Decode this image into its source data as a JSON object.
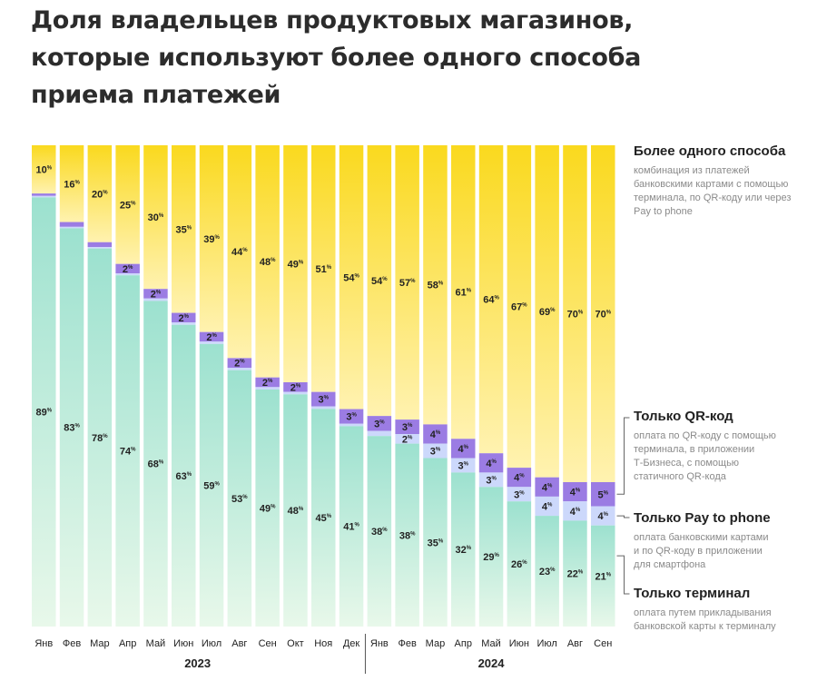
{
  "title_lines": [
    "Доля владельцев продуктовых магазинов,",
    "которые используют более одного способа",
    "приема платежей"
  ],
  "legend": [
    {
      "key": "multi",
      "title": "Более одного способа",
      "desc": [
        "комбинация из платежей",
        "банковскими картами с помощью",
        "терминала, по QR-коду или через",
        "Pay to phone"
      ]
    },
    {
      "key": "qr",
      "title": "Только QR-код",
      "desc": [
        "оплата по QR-коду с помощью",
        "терминала, в приложении",
        "Т-Бизнеса, с помощью",
        "статичного QR-кода"
      ]
    },
    {
      "key": "p2p",
      "title": "Только Pay to phone",
      "desc": [
        "оплата банковскими картами",
        "и по QR-коду в приложении",
        "для смартфона"
      ]
    },
    {
      "key": "terminal",
      "title": "Только терминал",
      "desc": [
        "оплата путем прикладывания",
        "банковской карты к терминалу"
      ]
    }
  ],
  "colors": {
    "multi_top": "#FAD91E",
    "multi_bottom": "#FFF2B0",
    "qr": "#9B7CE3",
    "p2p": "#CCD8FB",
    "terminal_top": "#9CE1CF",
    "terminal_bottom": "#E8F8EA",
    "axis": "#555555",
    "text": "#222222"
  },
  "chart_data": {
    "type": "bar",
    "stacked": true,
    "unit": "%",
    "categories": [
      "Янв",
      "Фев",
      "Мар",
      "Апр",
      "Май",
      "Июн",
      "Июл",
      "Авг",
      "Сен",
      "Окт",
      "Ноя",
      "Дек",
      "Янв",
      "Фев",
      "Мар",
      "Апр",
      "Май",
      "Июн",
      "Июл",
      "Авг",
      "Сен"
    ],
    "years": [
      {
        "label": "2023",
        "from": 0,
        "to": 11
      },
      {
        "label": "2024",
        "from": 12,
        "to": 20
      }
    ],
    "series": [
      {
        "name": "Только терминал",
        "key": "terminal",
        "values": [
          89,
          83,
          78,
          74,
          68,
          63,
          59,
          53,
          49,
          48,
          45,
          41,
          38,
          38,
          35,
          32,
          29,
          26,
          23,
          22,
          21
        ],
        "labels": [
          "89",
          "83",
          "78",
          "74",
          "68",
          "63",
          "59",
          "53",
          "49",
          "48",
          "45",
          "41",
          "38",
          "38",
          "35",
          "32",
          "29",
          "26",
          "23",
          "22",
          "21"
        ]
      },
      {
        "name": "Только Pay to phone",
        "key": "p2p",
        "values": [
          0.3,
          0.3,
          0.3,
          0.4,
          0.5,
          0.5,
          0.5,
          0.5,
          0.5,
          0.5,
          0.5,
          0.5,
          1,
          2,
          3,
          3,
          3,
          3,
          4,
          4,
          4
        ],
        "labels": [
          "",
          "",
          "",
          "",
          "",
          "",
          "",
          "",
          "",
          "",
          "",
          "",
          "",
          "2",
          "3",
          "3",
          "3",
          "3",
          "4",
          "4",
          "4"
        ]
      },
      {
        "name": "Только QR-код",
        "key": "qr",
        "values": [
          0.5,
          1,
          1,
          2,
          2,
          2,
          2,
          2,
          2,
          2,
          3,
          3,
          3,
          3,
          4,
          4,
          4,
          4,
          4,
          4,
          5
        ],
        "labels": [
          "",
          "",
          "",
          "2",
          "2",
          "2",
          "2",
          "2",
          "2",
          "2",
          "3",
          "3",
          "3",
          "3",
          "4",
          "4",
          "4",
          "4",
          "4",
          "4",
          "5"
        ]
      },
      {
        "name": "Более одного способа",
        "key": "multi",
        "values": [
          10,
          16,
          20,
          25,
          30,
          35,
          39,
          44,
          48,
          49,
          51,
          54,
          54,
          57,
          58,
          61,
          64,
          67,
          69,
          70,
          70
        ],
        "labels": [
          "10",
          "16",
          "20",
          "25",
          "30",
          "35",
          "39",
          "44",
          "48",
          "49",
          "51",
          "54",
          "54",
          "57",
          "58",
          "61",
          "64",
          "67",
          "69",
          "70",
          "70"
        ]
      }
    ],
    "ylim": [
      0,
      100
    ]
  }
}
